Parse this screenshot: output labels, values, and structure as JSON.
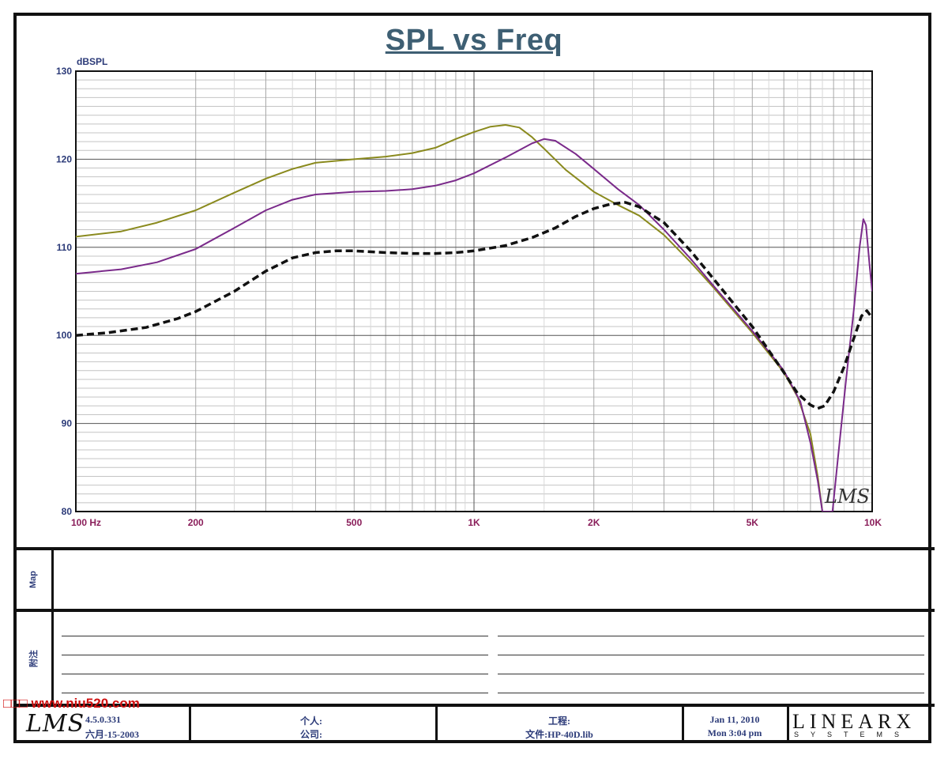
{
  "chart_data": {
    "type": "line",
    "title": "SPL vs Freq",
    "ylabel": "dBSPL",
    "x_scale": "log",
    "xlim": [
      100,
      10000
    ],
    "ylim": [
      80,
      130
    ],
    "y_ticks": [
      80,
      90,
      100,
      110,
      120,
      130
    ],
    "x_tick_labels": [
      {
        "x": 100,
        "label": "100  Hz"
      },
      {
        "x": 200,
        "label": "200"
      },
      {
        "x": 500,
        "label": "500"
      },
      {
        "x": 1000,
        "label": "1K"
      },
      {
        "x": 2000,
        "label": "2K"
      },
      {
        "x": 5000,
        "label": "5K"
      },
      {
        "x": 10000,
        "label": "10K"
      }
    ],
    "grid": true,
    "series": [
      {
        "color": "#8a8a1e",
        "style": "solid",
        "points": [
          [
            100,
            111.2
          ],
          [
            130,
            111.8
          ],
          [
            160,
            112.8
          ],
          [
            200,
            114.2
          ],
          [
            250,
            116.2
          ],
          [
            300,
            117.8
          ],
          [
            350,
            118.9
          ],
          [
            400,
            119.6
          ],
          [
            500,
            120
          ],
          [
            600,
            120.3
          ],
          [
            700,
            120.7
          ],
          [
            800,
            121.3
          ],
          [
            900,
            122.3
          ],
          [
            1000,
            123.1
          ],
          [
            1100,
            123.7
          ],
          [
            1200,
            123.9
          ],
          [
            1300,
            123.6
          ],
          [
            1400,
            122.5
          ],
          [
            1500,
            121.2
          ],
          [
            1700,
            118.8
          ],
          [
            2000,
            116.3
          ],
          [
            2300,
            114.8
          ],
          [
            2600,
            113.6
          ],
          [
            3000,
            111.4
          ],
          [
            3500,
            108.3
          ],
          [
            4000,
            105.4
          ],
          [
            5000,
            100.3
          ],
          [
            6000,
            95.8
          ],
          [
            6500,
            93
          ],
          [
            7000,
            88.8
          ],
          [
            7300,
            84
          ],
          [
            7500,
            80
          ]
        ]
      },
      {
        "color": "#7a2a8a",
        "style": "solid",
        "points": [
          [
            100,
            107
          ],
          [
            130,
            107.5
          ],
          [
            160,
            108.3
          ],
          [
            200,
            109.8
          ],
          [
            250,
            112.2
          ],
          [
            300,
            114.2
          ],
          [
            350,
            115.4
          ],
          [
            400,
            116
          ],
          [
            500,
            116.3
          ],
          [
            600,
            116.4
          ],
          [
            700,
            116.6
          ],
          [
            800,
            117
          ],
          [
            900,
            117.6
          ],
          [
            1000,
            118.4
          ],
          [
            1200,
            120.2
          ],
          [
            1400,
            121.8
          ],
          [
            1500,
            122.3
          ],
          [
            1600,
            122.1
          ],
          [
            1800,
            120.6
          ],
          [
            2000,
            118.9
          ],
          [
            2300,
            116.6
          ],
          [
            2600,
            114.8
          ],
          [
            3000,
            112
          ],
          [
            3500,
            108.7
          ],
          [
            4000,
            105.6
          ],
          [
            5000,
            100.5
          ],
          [
            6000,
            96
          ],
          [
            6600,
            92.5
          ],
          [
            7000,
            87.8
          ],
          [
            7300,
            83.5
          ],
          [
            7500,
            80
          ],
          [
            7950,
            80
          ],
          [
            8200,
            86
          ],
          [
            8600,
            95
          ],
          [
            9000,
            103
          ],
          [
            9300,
            110
          ],
          [
            9500,
            113.2
          ],
          [
            9650,
            112.5
          ],
          [
            9850,
            108
          ],
          [
            10000,
            105
          ]
        ]
      },
      {
        "color": "#111111",
        "style": "dashed",
        "points": [
          [
            100,
            100
          ],
          [
            120,
            100.3
          ],
          [
            150,
            100.9
          ],
          [
            180,
            101.9
          ],
          [
            200,
            102.7
          ],
          [
            250,
            105
          ],
          [
            300,
            107.3
          ],
          [
            350,
            108.8
          ],
          [
            400,
            109.4
          ],
          [
            450,
            109.6
          ],
          [
            500,
            109.6
          ],
          [
            600,
            109.4
          ],
          [
            700,
            109.3
          ],
          [
            800,
            109.3
          ],
          [
            900,
            109.4
          ],
          [
            1000,
            109.6
          ],
          [
            1200,
            110.2
          ],
          [
            1400,
            111.1
          ],
          [
            1600,
            112.2
          ],
          [
            1800,
            113.5
          ],
          [
            2000,
            114.4
          ],
          [
            2200,
            114.9
          ],
          [
            2400,
            115.1
          ],
          [
            2600,
            114.6
          ],
          [
            3000,
            112.8
          ],
          [
            3500,
            109.6
          ],
          [
            4000,
            106.4
          ],
          [
            5000,
            101
          ],
          [
            6000,
            95.8
          ],
          [
            6500,
            93.4
          ],
          [
            7000,
            92.1
          ],
          [
            7300,
            91.7
          ],
          [
            7600,
            92
          ],
          [
            8000,
            93.6
          ],
          [
            8500,
            96.4
          ],
          [
            9000,
            99.7
          ],
          [
            9400,
            102.2
          ],
          [
            9700,
            102.8
          ],
          [
            10000,
            102
          ]
        ]
      }
    ]
  },
  "plot_watermark": "LMS",
  "panels": {
    "map_label": "Map",
    "notes_label": "附注"
  },
  "footer": {
    "logo": "LMS",
    "version": "4.5.0.331",
    "build_date": "六月-15-2003",
    "personal_label": "个人:",
    "company_label": "公司:",
    "project_label": "工程:",
    "file_label": "文件:HP-40D.lib",
    "date": "Jan 11, 2010",
    "time": "Mon  3:04 pm",
    "brand": "LINEARX",
    "brand_sub": "SYSTEMS"
  },
  "watermark_text": "□□□ www.niu520.com"
}
